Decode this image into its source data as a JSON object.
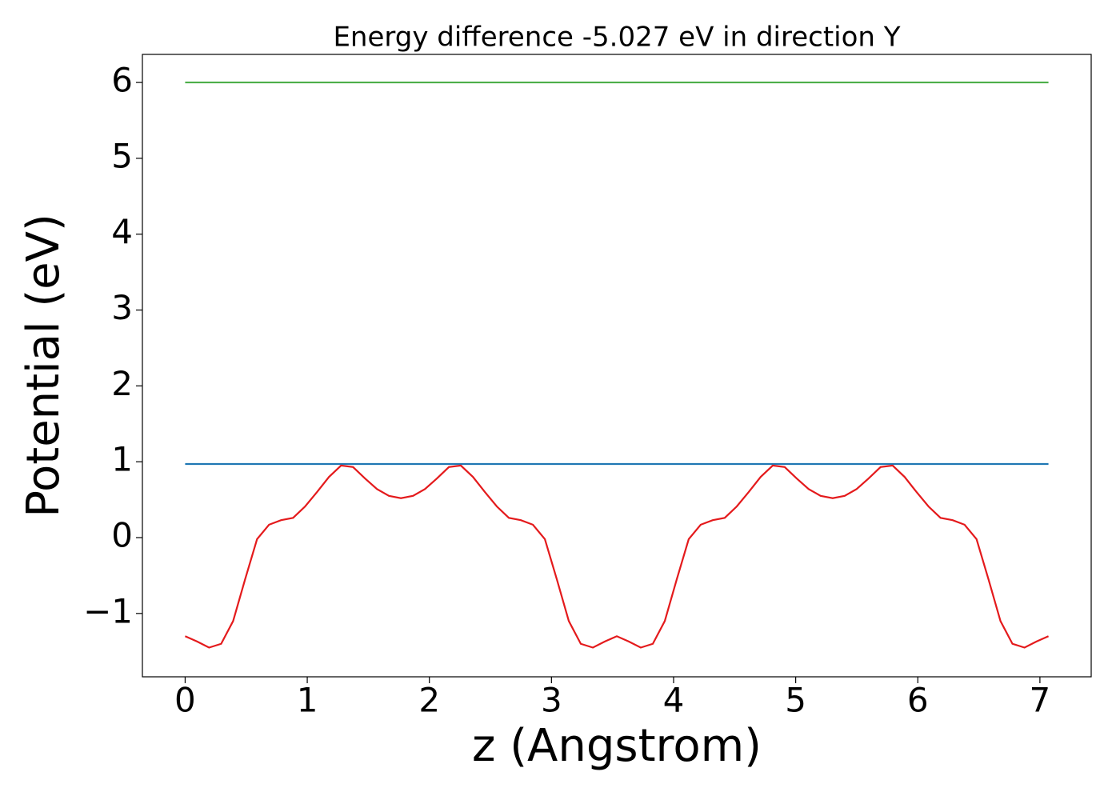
{
  "chart_data": {
    "type": "line",
    "title": "Energy difference -5.027 eV in direction Y",
    "x_label": "z (Angstrom)",
    "y_label": "Potential (eV)",
    "xlim": [
      -0.35,
      7.42
    ],
    "ylim": [
      -1.835,
      6.37
    ],
    "xticks": [
      0,
      1,
      2,
      3,
      4,
      5,
      6,
      7
    ],
    "yticks": [
      {
        "value": -1,
        "label": "−1"
      },
      0,
      1,
      2,
      3,
      4,
      5,
      6
    ],
    "series": [
      {
        "color": "#4daf4a",
        "x": [
          0,
          7.07
        ],
        "values": [
          6,
          6
        ]
      },
      {
        "color": "#1f77b4",
        "x": [
          0,
          7.07
        ],
        "values": [
          0.97,
          0.97
        ]
      },
      {
        "color": "#e41a1c",
        "x": [
          0,
          0.098,
          0.196,
          0.295,
          0.393,
          0.491,
          0.589,
          0.687,
          0.786,
          0.884,
          0.982,
          1.08,
          1.178,
          1.277,
          1.375,
          1.473,
          1.571,
          1.669,
          1.767,
          1.866,
          1.964,
          2.062,
          2.16,
          2.258,
          2.357,
          2.455,
          2.553,
          2.651,
          2.749,
          2.848,
          2.946,
          3.044,
          3.142,
          3.24,
          3.339,
          3.437,
          3.535,
          3.633,
          3.731,
          3.83,
          3.928,
          4.026,
          4.124,
          4.222,
          4.321,
          4.419,
          4.517,
          4.615,
          4.713,
          4.812,
          4.91,
          5.008,
          5.106,
          5.204,
          5.303,
          5.401,
          5.499,
          5.597,
          5.695,
          5.794,
          5.892,
          5.99,
          6.088,
          6.186,
          6.285,
          6.383,
          6.481,
          6.579,
          6.677,
          6.775,
          6.874,
          6.972,
          7.07
        ],
        "values": [
          -1.3,
          -1.37,
          -1.45,
          -1.4,
          -1.1,
          -0.55,
          -0.02,
          0.17,
          0.23,
          0.26,
          0.41,
          0.6,
          0.8,
          0.95,
          0.93,
          0.78,
          0.64,
          0.55,
          0.52,
          0.55,
          0.64,
          0.78,
          0.93,
          0.95,
          0.8,
          0.6,
          0.41,
          0.26,
          0.23,
          0.17,
          -0.02,
          -0.55,
          -1.1,
          -1.4,
          -1.45,
          -1.37,
          -1.3,
          -1.37,
          -1.45,
          -1.4,
          -1.1,
          -0.55,
          -0.02,
          0.17,
          0.23,
          0.26,
          0.41,
          0.6,
          0.8,
          0.95,
          0.93,
          0.78,
          0.64,
          0.55,
          0.52,
          0.55,
          0.64,
          0.78,
          0.93,
          0.95,
          0.8,
          0.6,
          0.41,
          0.26,
          0.23,
          0.17,
          -0.02,
          -0.55,
          -1.1,
          -1.4,
          -1.45,
          -1.37,
          -1.3
        ]
      }
    ]
  }
}
